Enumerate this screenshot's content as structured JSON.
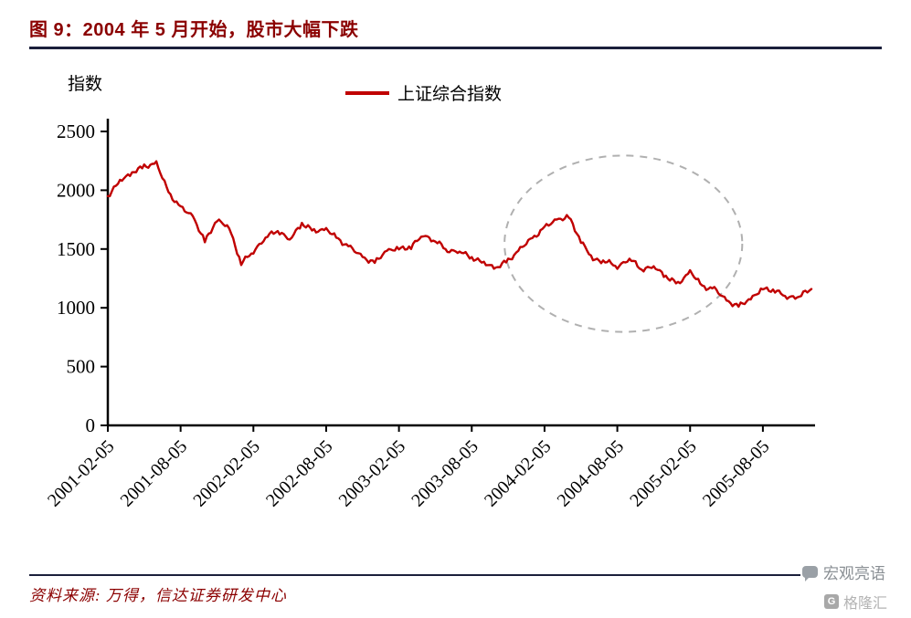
{
  "figure": {
    "title": "图 9：2004 年 5 月开始，股市大幅下跌",
    "source": "资料来源: 万得，信达证券研发中心"
  },
  "watermark": {
    "brand1": "宏观亮语",
    "brand2": "格隆汇",
    "brand2_letter": "G"
  },
  "colors": {
    "title_color": "#8B0000",
    "rule_color": "#1B1F3B",
    "series_color": "#C00000",
    "ellipse_color": "#B0B0B0",
    "axis_color": "#000000"
  },
  "chart_data": {
    "type": "line",
    "title": "",
    "ylabel": "指数",
    "xlabel": "",
    "legend_position": "top-center",
    "grid": false,
    "ylim": [
      0,
      2500
    ],
    "yticks": [
      0,
      500,
      1000,
      1500,
      2000,
      2500
    ],
    "x_start_month": "2001-02",
    "x_end_month": "2005-12",
    "x_interval": "monthly",
    "x_tick_labels": [
      "2001-02-05",
      "2001-08-05",
      "2002-02-05",
      "2002-08-05",
      "2003-02-05",
      "2003-08-05",
      "2004-02-05",
      "2004-08-05",
      "2005-02-05",
      "2005-08-05"
    ],
    "x_tick_month_index": [
      0,
      6,
      12,
      18,
      24,
      30,
      36,
      42,
      48,
      54
    ],
    "series": [
      {
        "name": "上证综合指数",
        "color": "#C00000",
        "monthly_values": [
          1950,
          2080,
          2150,
          2200,
          2230,
          1980,
          1850,
          1780,
          1560,
          1750,
          1680,
          1380,
          1480,
          1600,
          1660,
          1580,
          1720,
          1650,
          1670,
          1580,
          1510,
          1430,
          1380,
          1490,
          1500,
          1520,
          1620,
          1570,
          1490,
          1480,
          1430,
          1380,
          1340,
          1400,
          1500,
          1590,
          1680,
          1750,
          1770,
          1570,
          1410,
          1400,
          1350,
          1420,
          1330,
          1350,
          1270,
          1200,
          1310,
          1180,
          1160,
          1060,
          1010,
          1080,
          1160,
          1150,
          1090,
          1100,
          1160
        ]
      }
    ],
    "annotation_ellipse": {
      "description": "dashed circle highlighting the 2004-05 to 2005 market decline",
      "center_month_index": 42.5,
      "center_value": 1545,
      "rx_months": 9.8,
      "ry_value": 750,
      "style": "dashed",
      "color": "#B0B0B0"
    }
  }
}
